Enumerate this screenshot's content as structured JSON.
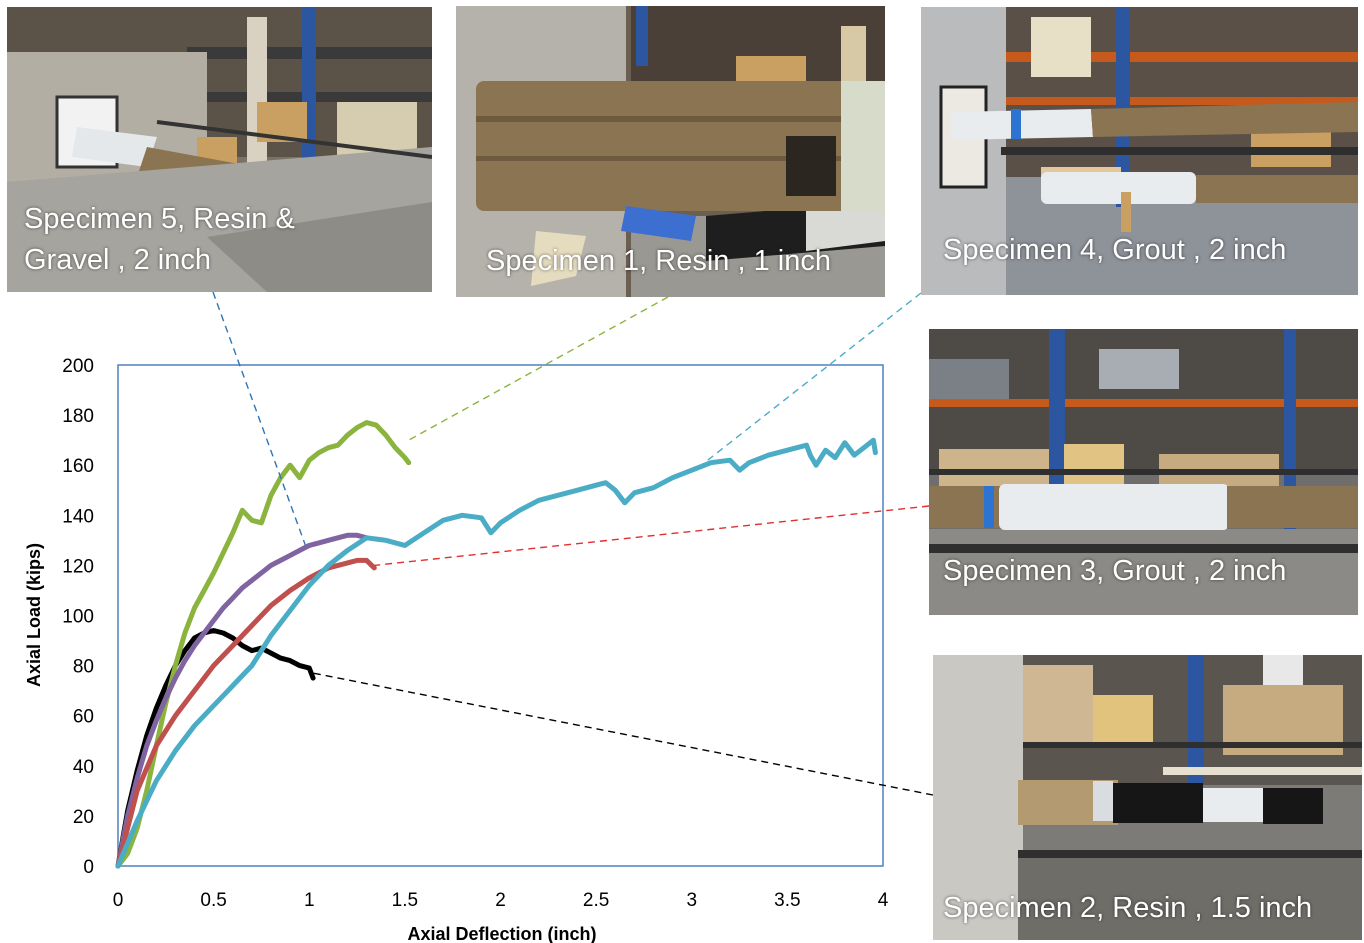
{
  "chart_data": {
    "type": "line",
    "title": "",
    "xlabel": "Axial Deflection (inch)",
    "ylabel": "Axial Load (kips)",
    "xlim": [
      0,
      4
    ],
    "ylim": [
      0,
      200
    ],
    "xticks": [
      0,
      0.5,
      1,
      1.5,
      2,
      2.5,
      3,
      3.5,
      4
    ],
    "yticks": [
      0,
      20,
      40,
      60,
      80,
      100,
      120,
      140,
      160,
      180,
      200
    ],
    "xtick_labels": [
      "0",
      "0.5",
      "1",
      "1.5",
      "2",
      "2.5",
      "3",
      "3.5",
      "4"
    ],
    "ytick_labels": [
      "0",
      "20",
      "40",
      "60",
      "80",
      "100",
      "120",
      "140",
      "160",
      "180",
      "200"
    ],
    "grid": false,
    "legend": "none",
    "series": [
      {
        "color": "#000000",
        "x": [
          0,
          0.05,
          0.1,
          0.15,
          0.2,
          0.25,
          0.3,
          0.35,
          0.4,
          0.45,
          0.5,
          0.55,
          0.6,
          0.65,
          0.7,
          0.75,
          0.8,
          0.85,
          0.9,
          0.95,
          1.0,
          1.02
        ],
        "y": [
          0,
          22,
          38,
          52,
          63,
          72,
          80,
          86,
          91,
          93,
          94,
          93,
          91,
          88,
          86,
          87,
          85,
          83,
          82,
          80,
          79,
          75
        ]
      },
      {
        "color": "#8ab43e",
        "x": [
          0,
          0.05,
          0.1,
          0.15,
          0.2,
          0.25,
          0.3,
          0.35,
          0.4,
          0.45,
          0.5,
          0.55,
          0.6,
          0.65,
          0.7,
          0.75,
          0.8,
          0.85,
          0.9,
          0.95,
          1.0,
          1.05,
          1.1,
          1.15,
          1.2,
          1.25,
          1.3,
          1.35,
          1.4,
          1.45,
          1.5,
          1.52
        ],
        "y": [
          0,
          5,
          15,
          30,
          48,
          65,
          80,
          93,
          103,
          110,
          117,
          125,
          133,
          142,
          138,
          137,
          148,
          155,
          160,
          155,
          162,
          165,
          167,
          168,
          172,
          175,
          177,
          176,
          172,
          167,
          163,
          161
        ]
      },
      {
        "color": "#8064a2",
        "x": [
          0,
          0.05,
          0.1,
          0.15,
          0.2,
          0.25,
          0.3,
          0.35,
          0.4,
          0.45,
          0.5,
          0.55,
          0.6,
          0.65,
          0.7,
          0.75,
          0.8,
          0.85,
          0.9,
          0.95,
          1.0,
          1.05,
          1.1,
          1.15,
          1.2,
          1.25,
          1.3
        ],
        "y": [
          0,
          20,
          35,
          48,
          58,
          67,
          75,
          82,
          88,
          93,
          98,
          103,
          107,
          111,
          114,
          117,
          120,
          122,
          124,
          126,
          128,
          129,
          130,
          131,
          132,
          132,
          131
        ]
      },
      {
        "color": "#c0504d",
        "x": [
          0,
          0.1,
          0.2,
          0.3,
          0.4,
          0.5,
          0.6,
          0.7,
          0.8,
          0.9,
          1.0,
          1.1,
          1.15,
          1.2,
          1.25,
          1.3,
          1.34
        ],
        "y": [
          0,
          30,
          48,
          60,
          70,
          80,
          88,
          96,
          104,
          110,
          115,
          119,
          120,
          121,
          122,
          122,
          119
        ]
      },
      {
        "color": "#4bacc6",
        "x": [
          0,
          0.1,
          0.2,
          0.3,
          0.4,
          0.5,
          0.55,
          0.6,
          0.65,
          0.7,
          0.75,
          0.8,
          0.9,
          1.0,
          1.1,
          1.2,
          1.3,
          1.4,
          1.5,
          1.6,
          1.7,
          1.8,
          1.9,
          1.95,
          2.0,
          2.1,
          2.2,
          2.3,
          2.4,
          2.5,
          2.55,
          2.6,
          2.65,
          2.7,
          2.8,
          2.9,
          3.0,
          3.1,
          3.2,
          3.25,
          3.3,
          3.4,
          3.5,
          3.6,
          3.62,
          3.65,
          3.7,
          3.75,
          3.8,
          3.85,
          3.9,
          3.95,
          3.96
        ],
        "y": [
          0,
          18,
          34,
          46,
          56,
          64,
          68,
          72,
          76,
          80,
          86,
          92,
          102,
          112,
          120,
          126,
          131,
          130,
          128,
          133,
          138,
          140,
          139,
          133,
          137,
          142,
          146,
          148,
          150,
          152,
          153,
          150,
          145,
          149,
          151,
          155,
          158,
          161,
          162,
          158,
          161,
          164,
          166,
          168,
          164,
          160,
          166,
          163,
          169,
          164,
          167,
          170,
          165
        ]
      }
    ]
  },
  "photos": [
    {
      "caption_line1": "Specimen 5, Resin &",
      "caption_line2": "Gravel , 2 inch"
    },
    {
      "caption_line1": "Specimen 1, Resin , 1 inch"
    },
    {
      "caption_line1": "Specimen 4, Grout , 2 inch"
    },
    {
      "caption_line1": "Specimen 3, Grout , 2 inch"
    },
    {
      "caption_line1": "Specimen 2, Resin , 1.5 inch"
    }
  ],
  "colors": {
    "plot_border": "#4f81bd",
    "photo_floor": "#8e9299",
    "photo_wall": "#b9bbbd",
    "shelving_blue": "#2d56a0",
    "timber_pile": "#8b7451",
    "jacket_white": "#e8ecef"
  }
}
